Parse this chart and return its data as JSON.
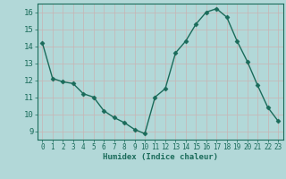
{
  "x": [
    0,
    1,
    2,
    3,
    4,
    5,
    6,
    7,
    8,
    9,
    10,
    11,
    12,
    13,
    14,
    15,
    16,
    17,
    18,
    19,
    20,
    21,
    22,
    23
  ],
  "y": [
    14.2,
    12.1,
    11.9,
    11.8,
    11.2,
    11.0,
    10.2,
    9.8,
    9.5,
    9.1,
    8.85,
    11.0,
    11.5,
    13.6,
    14.3,
    15.3,
    16.0,
    16.2,
    15.7,
    14.3,
    13.1,
    11.7,
    10.4,
    9.6
  ],
  "line_color": "#1a6b5a",
  "marker": "D",
  "marker_size": 2.5,
  "bg_color": "#b2d8d8",
  "grid_major_color": "#c8b4b4",
  "grid_minor_color": "#d0c0c0",
  "axis_color": "#1a6b5a",
  "xlabel": "Humidex (Indice chaleur)",
  "ylim": [
    8.5,
    16.5
  ],
  "xlim": [
    -0.5,
    23.5
  ],
  "yticks": [
    9,
    10,
    11,
    12,
    13,
    14,
    15,
    16
  ],
  "xtick_labels": [
    "0",
    "1",
    "2",
    "3",
    "4",
    "5",
    "6",
    "7",
    "8",
    "9",
    "10",
    "11",
    "12",
    "13",
    "14",
    "15",
    "16",
    "17",
    "18",
    "19",
    "20",
    "21",
    "22",
    "23"
  ],
  "xlabel_fontsize": 6.5,
  "ytick_fontsize": 6.5,
  "xtick_fontsize": 5.5
}
